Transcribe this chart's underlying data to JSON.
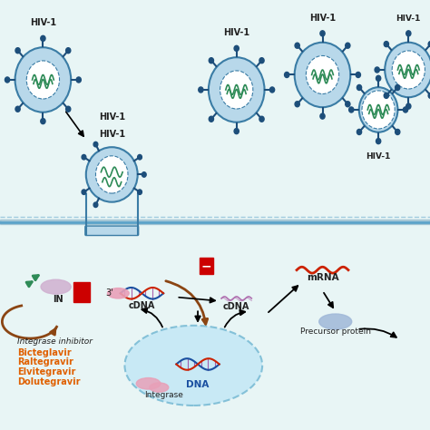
{
  "bg_top": "#e8f5f5",
  "bg_bottom": "#d6eff5",
  "divider_color": "#5ba3c9",
  "hiv_color": "#3a7ca5",
  "hiv_inner": "#b8d8ea",
  "hiv_spike": "#1d4e7a",
  "rna_color": "#2e8b57",
  "text_color": "#222222",
  "arrow_color": "#333333",
  "brown_arrow": "#8B4513",
  "red_inhibitor": "#cc0000",
  "orange_drug": "#e06000",
  "dna_blue": "#1a4fa0",
  "dna_red": "#cc2200",
  "mrna_red": "#cc2200",
  "pink_protein": "#e8a0b0",
  "lavender_protein": "#b0a0d0",
  "light_blue_nucleus": "#c5e8f5",
  "nucleus_border": "#7bbcd5",
  "label_IN": "IN",
  "label_3prime": "3'",
  "label_cDNA1": "cDNA",
  "label_cDNA2": "cDNA",
  "label_mRNA": "mRNA",
  "label_DNA": "DNA",
  "label_Integrase": "Integrase",
  "label_precursor": "Precursor protein",
  "label_inhibitor": "Integrase inhibitor",
  "drugs": [
    "Bicteglavir",
    "Raltegravir",
    "Elvitegravir",
    "Dolutegravir"
  ],
  "hiv_labels": [
    "HIV-1",
    "HIV-1",
    "HIV-1",
    "HIV-1",
    "HIV-1"
  ],
  "fig_width": 4.74,
  "fig_height": 4.74
}
